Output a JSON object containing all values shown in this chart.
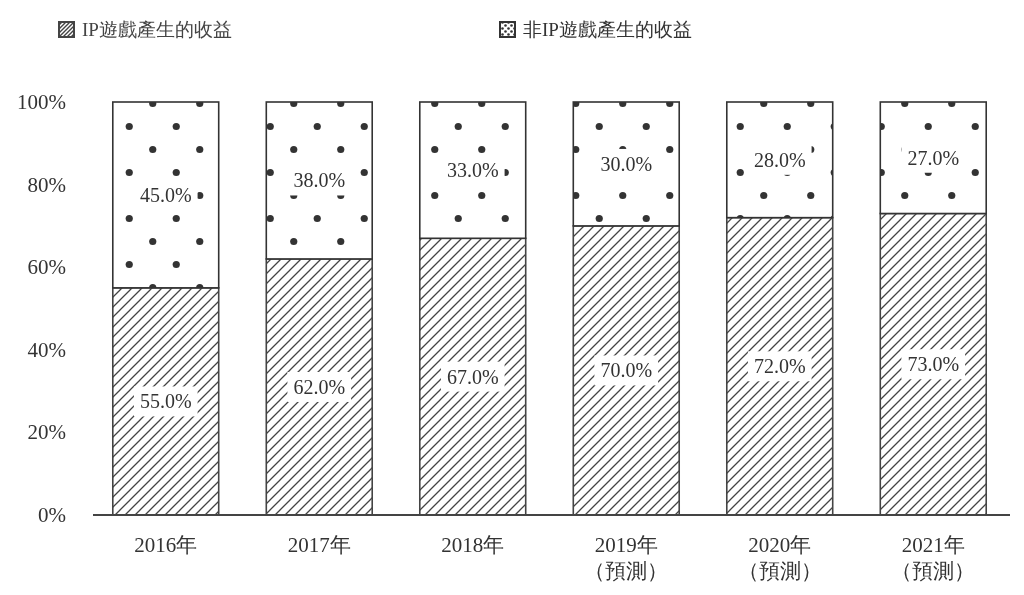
{
  "chart_data": {
    "type": "bar",
    "stacked": true,
    "categories": [
      "2016年",
      "2017年",
      "2018年",
      "2019年（預測）",
      "2020年（預測）",
      "2021年（預測）"
    ],
    "series": [
      {
        "name": "IP遊戲產生的收益",
        "color": "#444444",
        "values": [
          55,
          62,
          67,
          70,
          72,
          73
        ],
        "value_labels": [
          "55.0%",
          "62.0%",
          "67.0%",
          "70.0%",
          "72.0%",
          "73.0%"
        ]
      },
      {
        "name": "非IP遊戲產生的收益",
        "color": "#333333",
        "values": [
          45,
          38,
          33,
          30,
          28,
          27
        ],
        "value_labels": [
          "45.0%",
          "38.0%",
          "33.0%",
          "30.0%",
          "28.0%",
          "27.0%"
        ]
      }
    ],
    "ylim": [
      0,
      100
    ],
    "yticks": [
      {
        "value": 0,
        "label": "0%"
      },
      {
        "value": 20,
        "label": "20%"
      },
      {
        "value": 40,
        "label": "40%"
      },
      {
        "value": 60,
        "label": "60%"
      },
      {
        "value": 80,
        "label": "80%"
      },
      {
        "value": 100,
        "label": "100%"
      }
    ],
    "legend": "top"
  }
}
